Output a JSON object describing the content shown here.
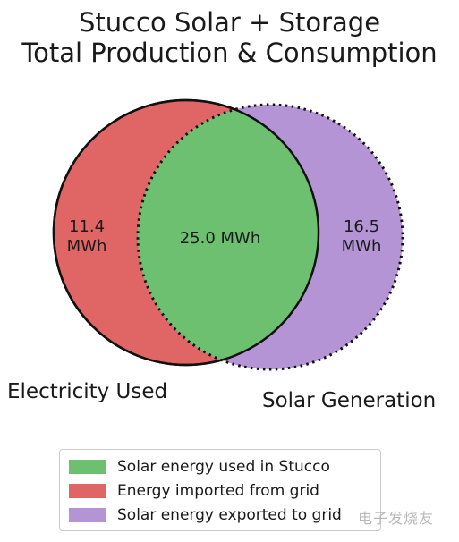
{
  "chart_data": {
    "type": "venn",
    "title": "Stucco Solar + Storage",
    "subtitle": "Total Production & Consumption",
    "sets": [
      {
        "name": "Electricity Used",
        "only_value_label": "11.4 MWh",
        "only_value": 11.4,
        "color": "#e06666",
        "border": "solid"
      },
      {
        "name": "Solar Generation",
        "only_value_label": "16.5 MWh",
        "only_value": 16.5,
        "color": "#b494d4",
        "border": "dotted"
      }
    ],
    "intersection": {
      "value": 25.0,
      "label": "25.0 MWh",
      "color": "#6cc070"
    },
    "unit": "MWh",
    "legend": {
      "placement": "bottom",
      "entries": [
        {
          "label": "Solar energy used in Stucco",
          "color": "#6cc070"
        },
        {
          "label": "Energy imported from grid",
          "color": "#e06666"
        },
        {
          "label": "Solar energy exported to grid",
          "color": "#b494d4"
        }
      ]
    }
  },
  "watermark": "电子发烧友"
}
